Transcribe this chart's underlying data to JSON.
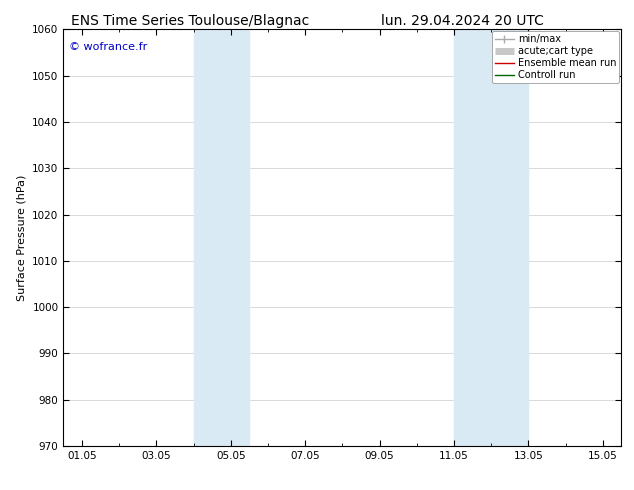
{
  "title_left": "ENS Time Series Toulouse/Blagnac",
  "title_right": "lun. 29.04.2024 20 UTC",
  "ylabel": "Surface Pressure (hPa)",
  "ylim": [
    970,
    1060
  ],
  "yticks": [
    970,
    980,
    990,
    1000,
    1010,
    1020,
    1030,
    1040,
    1050,
    1060
  ],
  "x_start_day": 1,
  "x_end_day": 15,
  "xtick_days": [
    1,
    3,
    5,
    7,
    9,
    11,
    13,
    15
  ],
  "xtick_labels": [
    "01.05",
    "03.05",
    "05.05",
    "07.05",
    "09.05",
    "11.05",
    "13.05",
    "15.05"
  ],
  "shaded_bands": [
    {
      "xmin": 4.0,
      "xmax": 5.5
    },
    {
      "xmin": 11.0,
      "xmax": 13.0
    }
  ],
  "shade_color": "#daeaf5",
  "watermark": "© wofrance.fr",
  "watermark_color": "#0000cc",
  "bg_color": "#ffffff",
  "plot_bg_color": "#ffffff",
  "legend_items": [
    {
      "label": "min/max",
      "color": "#aaaaaa",
      "lw": 1.0
    },
    {
      "label": "acute;cart type",
      "color": "#c8c8c8",
      "lw": 5
    },
    {
      "label": "Ensemble mean run",
      "color": "#cc0000",
      "lw": 1.0
    },
    {
      "label": "Controll run",
      "color": "#006600",
      "lw": 1.0
    }
  ],
  "title_fontsize": 10,
  "tick_fontsize": 7.5,
  "ylabel_fontsize": 8,
  "watermark_fontsize": 8,
  "legend_fontsize": 7
}
